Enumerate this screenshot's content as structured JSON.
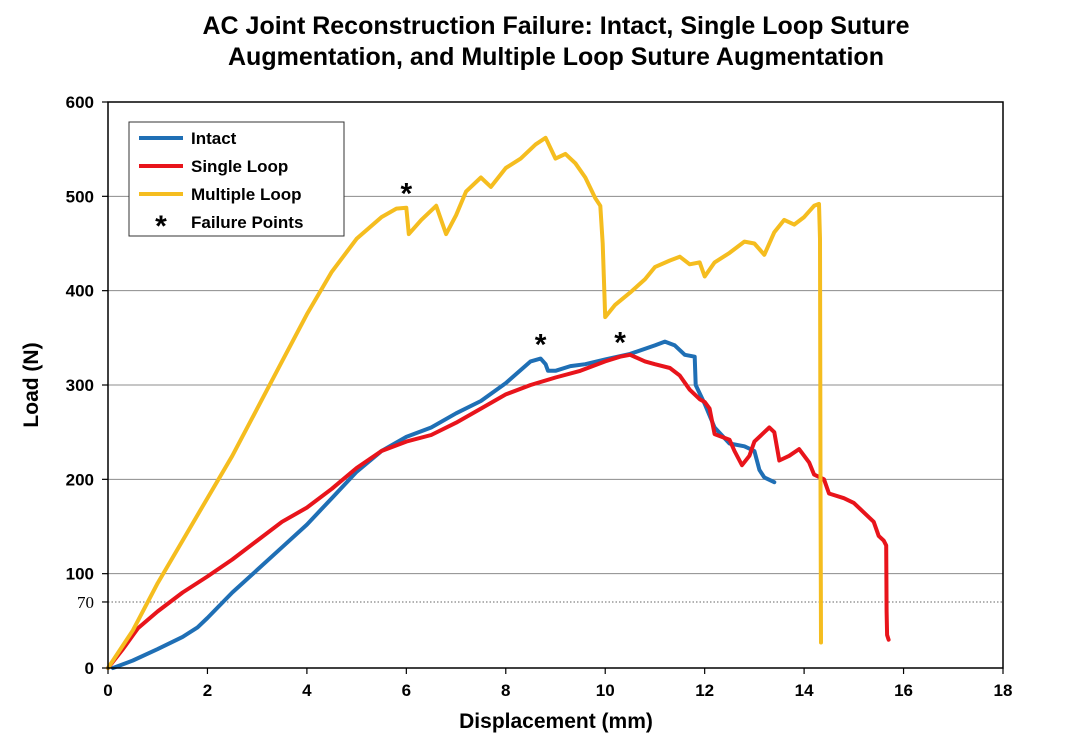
{
  "chart_data": {
    "type": "line",
    "title": [
      "AC Joint Reconstruction Failure: Intact, Single Loop Suture",
      "Augmentation, and Multiple Loop Suture Augmentation"
    ],
    "xlabel": "Displacement (mm)",
    "ylabel": "Load (N)",
    "xlim": [
      0,
      18
    ],
    "ylim": [
      0,
      600
    ],
    "x_ticks": [
      0,
      2,
      4,
      6,
      8,
      10,
      12,
      14,
      16,
      18
    ],
    "y_ticks": [
      0,
      100,
      200,
      300,
      400,
      500,
      600
    ],
    "y_extra_tick": {
      "value": 70,
      "label": "70",
      "line": "dotted"
    },
    "grid": "horizontal",
    "legend_position": "top-left",
    "series": [
      {
        "name": "Intact",
        "color": "#1F6FB5",
        "points": [
          [
            0.1,
            0
          ],
          [
            0.5,
            8
          ],
          [
            1,
            20
          ],
          [
            1.5,
            33
          ],
          [
            1.8,
            43
          ],
          [
            2,
            53
          ],
          [
            2.5,
            80
          ],
          [
            3,
            104
          ],
          [
            3.5,
            128
          ],
          [
            4,
            152
          ],
          [
            4.5,
            180
          ],
          [
            5,
            208
          ],
          [
            5.5,
            230
          ],
          [
            6,
            245
          ],
          [
            6.5,
            255
          ],
          [
            7,
            270
          ],
          [
            7.5,
            283
          ],
          [
            8,
            302
          ],
          [
            8.5,
            325
          ],
          [
            8.7,
            328
          ],
          [
            8.8,
            322
          ],
          [
            8.85,
            315
          ],
          [
            9,
            315
          ],
          [
            9.3,
            320
          ],
          [
            9.6,
            322
          ],
          [
            10,
            327
          ],
          [
            10.5,
            333
          ],
          [
            11,
            342
          ],
          [
            11.2,
            346
          ],
          [
            11.4,
            342
          ],
          [
            11.6,
            332
          ],
          [
            11.8,
            330
          ],
          [
            11.82,
            300
          ],
          [
            12,
            280
          ],
          [
            12.2,
            255
          ],
          [
            12.5,
            238
          ],
          [
            12.8,
            235
          ],
          [
            13,
            230
          ],
          [
            13.1,
            210
          ],
          [
            13.2,
            202
          ],
          [
            13.4,
            197
          ]
        ]
      },
      {
        "name": "Single Loop",
        "color": "#E8141B",
        "points": [
          [
            0,
            0
          ],
          [
            0.3,
            20
          ],
          [
            0.6,
            42
          ],
          [
            1,
            60
          ],
          [
            1.5,
            80
          ],
          [
            2,
            97
          ],
          [
            2.5,
            115
          ],
          [
            3,
            135
          ],
          [
            3.5,
            155
          ],
          [
            4,
            170
          ],
          [
            4.5,
            190
          ],
          [
            5,
            212
          ],
          [
            5.5,
            230
          ],
          [
            6,
            240
          ],
          [
            6.5,
            247
          ],
          [
            7,
            260
          ],
          [
            7.5,
            275
          ],
          [
            8,
            290
          ],
          [
            8.5,
            300
          ],
          [
            9,
            308
          ],
          [
            9.5,
            315
          ],
          [
            10,
            325
          ],
          [
            10.3,
            330
          ],
          [
            10.5,
            332
          ],
          [
            10.8,
            325
          ],
          [
            11,
            322
          ],
          [
            11.3,
            318
          ],
          [
            11.5,
            310
          ],
          [
            11.7,
            295
          ],
          [
            11.9,
            285
          ],
          [
            12,
            282
          ],
          [
            12.1,
            275
          ],
          [
            12.2,
            248
          ],
          [
            12.5,
            242
          ],
          [
            12.6,
            230
          ],
          [
            12.7,
            220
          ],
          [
            12.75,
            215
          ],
          [
            12.9,
            225
          ],
          [
            13,
            240
          ],
          [
            13.2,
            250
          ],
          [
            13.3,
            255
          ],
          [
            13.4,
            250
          ],
          [
            13.5,
            220
          ],
          [
            13.7,
            225
          ],
          [
            13.9,
            232
          ],
          [
            14.1,
            218
          ],
          [
            14.2,
            205
          ],
          [
            14.4,
            200
          ],
          [
            14.5,
            185
          ],
          [
            14.8,
            180
          ],
          [
            15,
            175
          ],
          [
            15.2,
            165
          ],
          [
            15.4,
            155
          ],
          [
            15.5,
            140
          ],
          [
            15.6,
            135
          ],
          [
            15.65,
            130
          ],
          [
            15.66,
            60
          ],
          [
            15.67,
            35
          ],
          [
            15.7,
            30
          ]
        ]
      },
      {
        "name": "Multiple Loop",
        "color": "#F5BD1F",
        "points": [
          [
            0,
            0
          ],
          [
            0.5,
            40
          ],
          [
            1,
            90
          ],
          [
            1.5,
            135
          ],
          [
            2,
            180
          ],
          [
            2.5,
            225
          ],
          [
            3,
            275
          ],
          [
            3.5,
            325
          ],
          [
            4,
            375
          ],
          [
            4.5,
            420
          ],
          [
            5,
            455
          ],
          [
            5.5,
            478
          ],
          [
            5.8,
            487
          ],
          [
            6,
            488
          ],
          [
            6.05,
            460
          ],
          [
            6.3,
            475
          ],
          [
            6.6,
            490
          ],
          [
            6.8,
            460
          ],
          [
            7,
            480
          ],
          [
            7.2,
            505
          ],
          [
            7.5,
            520
          ],
          [
            7.7,
            510
          ],
          [
            8,
            530
          ],
          [
            8.3,
            540
          ],
          [
            8.6,
            555
          ],
          [
            8.8,
            562
          ],
          [
            9.0,
            540
          ],
          [
            9.2,
            545
          ],
          [
            9.4,
            535
          ],
          [
            9.6,
            520
          ],
          [
            9.8,
            498
          ],
          [
            9.9,
            490
          ],
          [
            9.95,
            450
          ],
          [
            10,
            372
          ],
          [
            10.2,
            385
          ],
          [
            10.5,
            398
          ],
          [
            10.8,
            412
          ],
          [
            11,
            425
          ],
          [
            11.3,
            432
          ],
          [
            11.5,
            436
          ],
          [
            11.7,
            428
          ],
          [
            11.9,
            430
          ],
          [
            12.0,
            415
          ],
          [
            12.2,
            430
          ],
          [
            12.5,
            440
          ],
          [
            12.8,
            452
          ],
          [
            13,
            450
          ],
          [
            13.2,
            438
          ],
          [
            13.4,
            462
          ],
          [
            13.6,
            475
          ],
          [
            13.8,
            470
          ],
          [
            14,
            478
          ],
          [
            14.2,
            490
          ],
          [
            14.3,
            492
          ],
          [
            14.32,
            455
          ],
          [
            14.33,
            200
          ],
          [
            14.34,
            27
          ]
        ]
      }
    ],
    "failure_points": [
      {
        "x": 6.0,
        "y": 488
      },
      {
        "x": 8.7,
        "y": 328
      },
      {
        "x": 10.3,
        "y": 330
      }
    ],
    "legend": [
      {
        "label": "Intact",
        "color": "#1F6FB5",
        "marker": "line"
      },
      {
        "label": "Single Loop",
        "color": "#E8141B",
        "marker": "line"
      },
      {
        "label": "Multiple Loop",
        "color": "#F5BD1F",
        "marker": "line"
      },
      {
        "label": "Failure Points",
        "color": "#000000",
        "marker": "*"
      }
    ]
  }
}
